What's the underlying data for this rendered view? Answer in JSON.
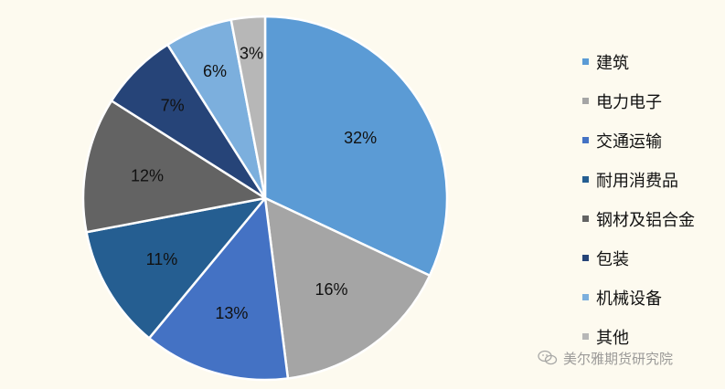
{
  "chart_data": {
    "type": "pie",
    "categories": [
      "建筑",
      "电力电子",
      "交通运输",
      "耐用消费品",
      "钢材及铝合金",
      "包装",
      "机械设备",
      "其他"
    ],
    "values": [
      32,
      16,
      13,
      11,
      12,
      7,
      6,
      3
    ],
    "value_labels": [
      "32%",
      "16%",
      "13%",
      "11%",
      "12%",
      "7%",
      "6%",
      "3%"
    ],
    "colors": [
      "#5B9BD5",
      "#A5A5A5",
      "#4472C4",
      "#255E91",
      "#636363",
      "#264478",
      "#7CAFDD",
      "#B7B7B7"
    ],
    "start_angle": "12 o'clock",
    "direction": "clockwise",
    "legend_placement": "right"
  },
  "watermark": {
    "text": "美尔雅期货研究院",
    "icon": "wechat-icon"
  }
}
